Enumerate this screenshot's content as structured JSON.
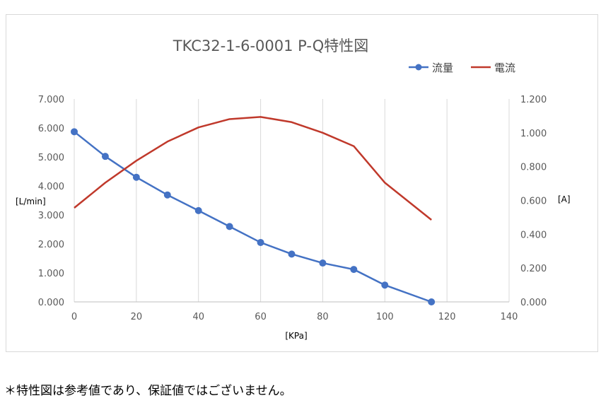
{
  "chart_data": {
    "type": "line",
    "title": "TKC32-1-6-0001 P-Q特性図",
    "xlabel": "[KPa]",
    "ylabel_left": "[L/min]",
    "ylabel_right": "[A]",
    "xlim": [
      0,
      140
    ],
    "x_ticks": [
      "0",
      "20",
      "40",
      "60",
      "80",
      "100",
      "120",
      "140"
    ],
    "ylim_left": [
      0,
      7
    ],
    "y_left_ticks": [
      "0.000",
      "1.000",
      "2.000",
      "3.000",
      "4.000",
      "5.000",
      "6.000",
      "7.000"
    ],
    "ylim_right": [
      0,
      1.2
    ],
    "y_right_ticks": [
      "0.000",
      "0.200",
      "0.400",
      "0.600",
      "0.800",
      "1.000",
      "1.200"
    ],
    "grid": "vertical",
    "legend_position": "top-right",
    "series": [
      {
        "name": "流量",
        "axis": "left",
        "color": "#4472c4",
        "markers": true,
        "x": [
          0,
          10,
          20,
          30,
          40,
          50,
          60,
          70,
          80,
          90,
          100,
          115
        ],
        "values": [
          5.87,
          5.02,
          4.3,
          3.69,
          3.15,
          2.6,
          2.05,
          1.65,
          1.34,
          1.12,
          0.58,
          0.0
        ]
      },
      {
        "name": "電流",
        "axis": "right",
        "color": "#c0392b",
        "markers": false,
        "x": [
          0,
          10,
          20,
          30,
          40,
          50,
          60,
          70,
          80,
          90,
          100,
          115
        ],
        "values": [
          0.556,
          0.705,
          0.835,
          0.948,
          1.032,
          1.081,
          1.094,
          1.063,
          1.0,
          0.921,
          0.705,
          0.485
        ]
      }
    ]
  },
  "footnote": "＊特性図は参考値であり、保証値ではございません。"
}
